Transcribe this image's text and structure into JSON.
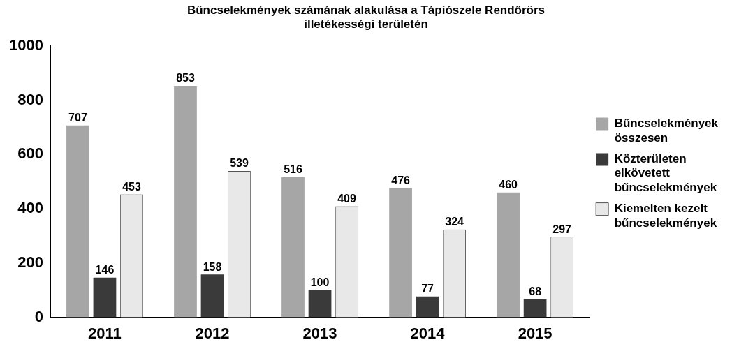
{
  "chart_data": {
    "type": "bar",
    "title": [
      "Bűncselekmények számának alakulása a Tápiószele Rendőrörs",
      "illetékességi területén"
    ],
    "categories": [
      "2011",
      "2012",
      "2013",
      "2014",
      "2015"
    ],
    "series": [
      {
        "name": "Bűncselekmények összesen",
        "color": "#a6a6a6",
        "values": [
          707,
          853,
          516,
          476,
          460
        ]
      },
      {
        "name": "Közterületen elkövetett bűncselekmények",
        "color": "#3a3a3a",
        "values": [
          146,
          158,
          100,
          77,
          68
        ]
      },
      {
        "name": "Kiemelten kezelt bűncselekmények",
        "color": "#e8e8e8",
        "values": [
          453,
          539,
          409,
          324,
          297
        ]
      }
    ],
    "ylim": [
      0,
      1000
    ],
    "yticks": [
      0,
      200,
      400,
      600,
      800,
      1000
    ],
    "grid": false,
    "legend": "right",
    "data_labels": true
  }
}
